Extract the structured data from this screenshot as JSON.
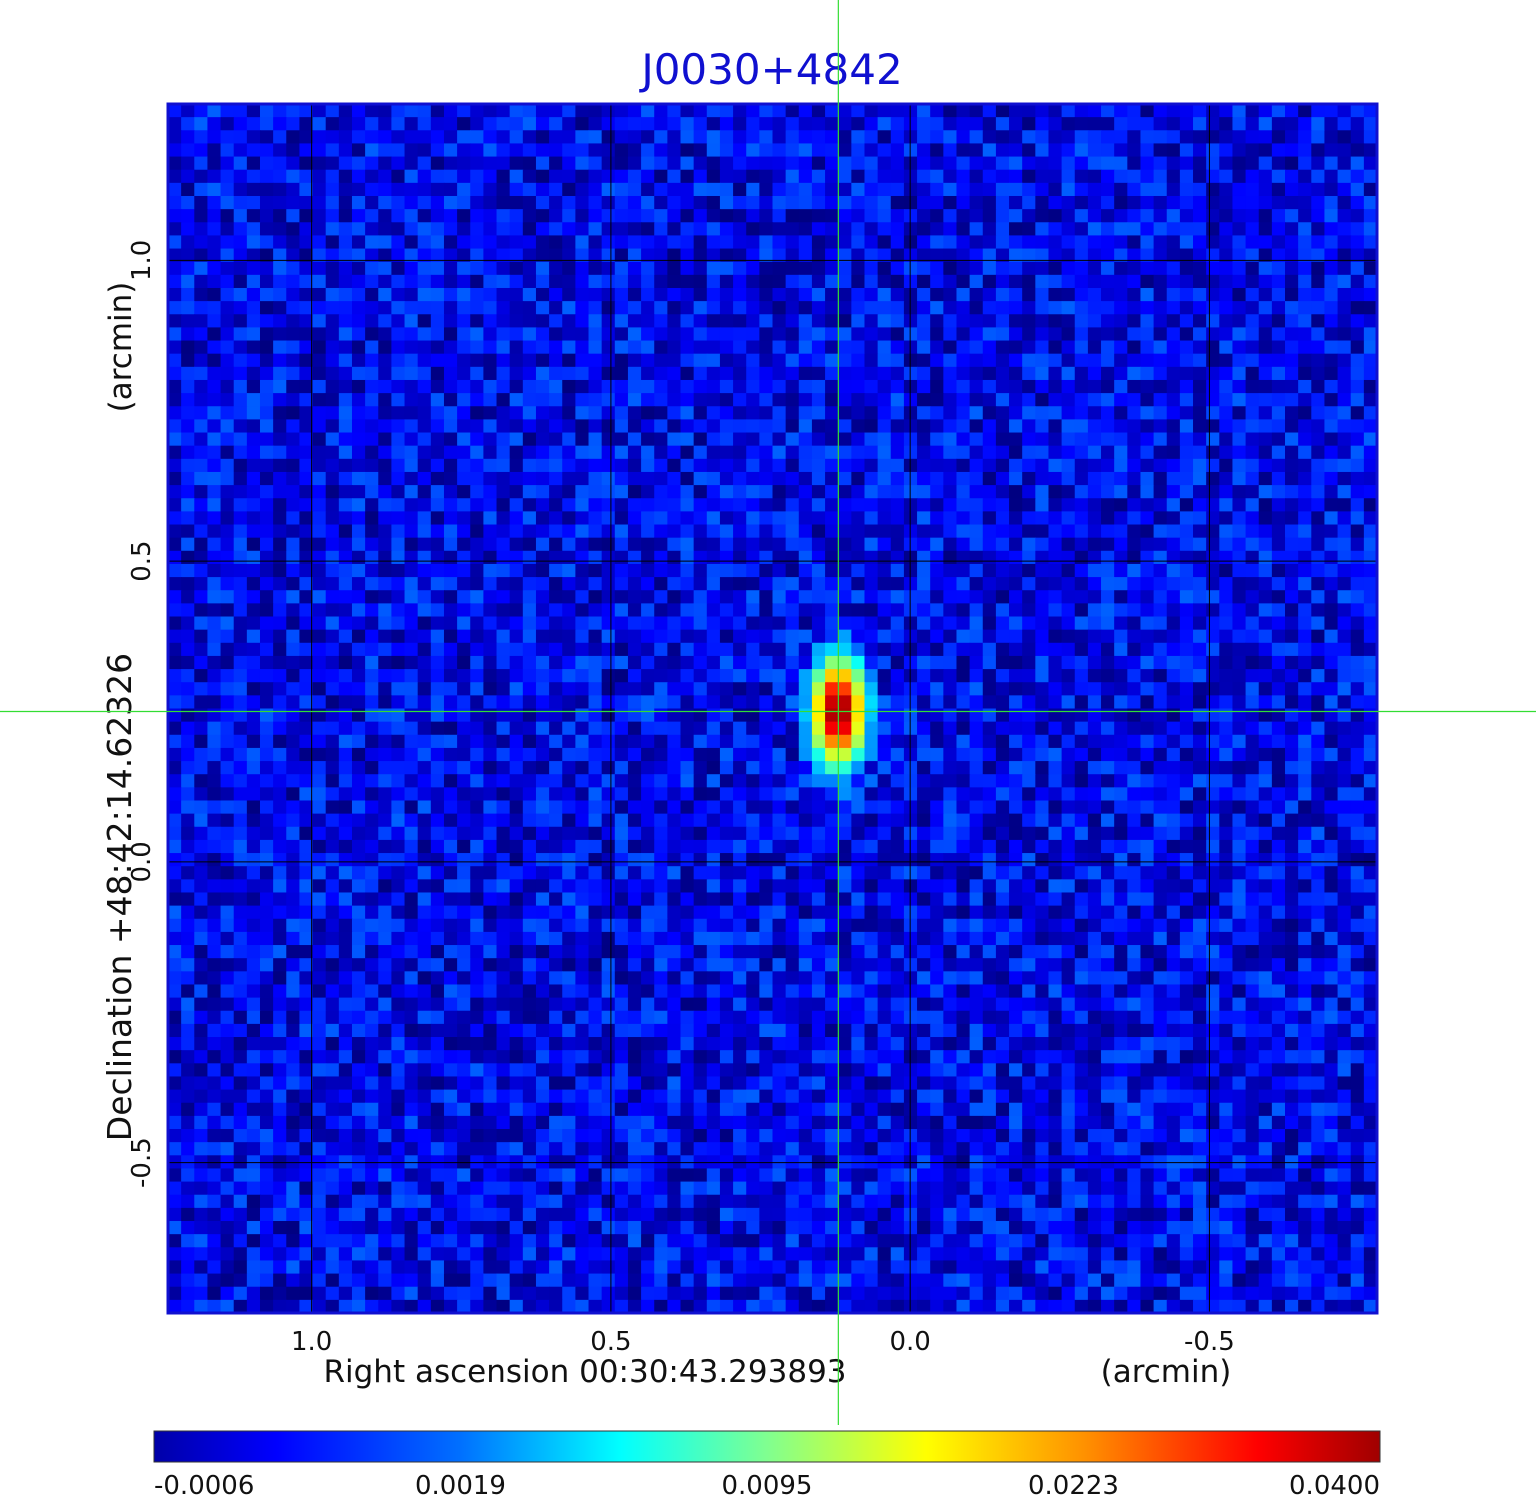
{
  "chart_data": {
    "type": "heatmap",
    "title": "J0030+4842",
    "xlabel": "Right ascension  00:30:43.293893",
    "xunit": "(arcmin)",
    "ylabel": "Declination  +48:42:14.62326",
    "yunit": "(arcmin)",
    "xlim": [
      1.24,
      -0.78
    ],
    "ylim": [
      -0.75,
      1.26
    ],
    "x_reversed": true,
    "x_ticks": [
      1.0,
      0.5,
      0.0,
      -0.5
    ],
    "x_tick_labels": [
      "1.0",
      "0.5",
      "0.0",
      "-0.5"
    ],
    "y_ticks": [
      1.0,
      0.5,
      0.0,
      -0.5
    ],
    "y_tick_labels": [
      "1.0",
      "0.5",
      "0.0",
      "-0.5"
    ],
    "grid": true,
    "crosshair": {
      "x": 0.12,
      "y": 0.25,
      "color": "#33dd33"
    },
    "source": {
      "x": 0.12,
      "y": 0.25,
      "peak": 0.04,
      "sigma_x": 0.025,
      "sigma_y": 0.05
    },
    "background_level": 0.0005,
    "colormap": "jet",
    "colorbar": {
      "ticks": [
        -0.0006,
        0.0019,
        0.0095,
        0.0223,
        0.04
      ],
      "tick_labels": [
        "-0.0006",
        "0.0019",
        "0.0095",
        "0.0223",
        "0.0400"
      ]
    },
    "colors": {
      "title": "#1010d0",
      "frame": "#1010d0",
      "grid": "#000000"
    }
  }
}
